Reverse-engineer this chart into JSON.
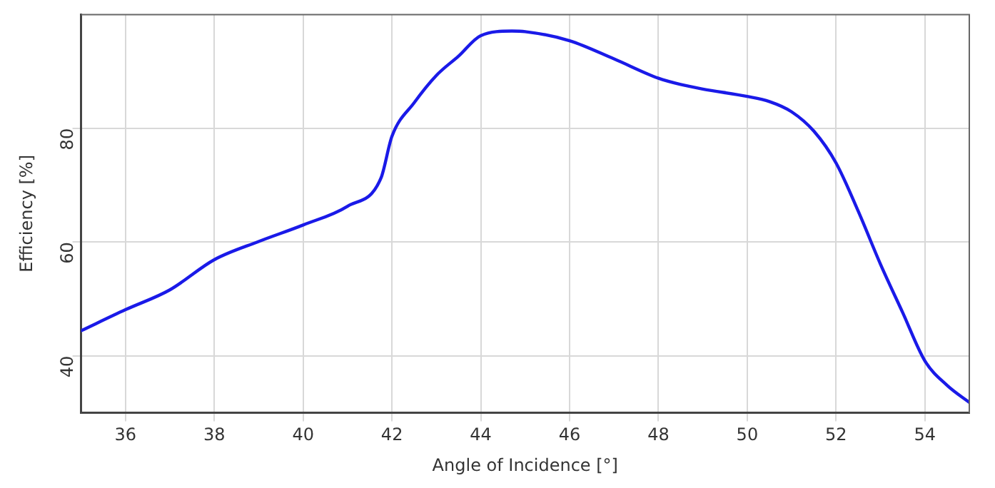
{
  "chart_data": {
    "type": "line",
    "xlabel": "Angle of Incidence [°]",
    "ylabel": "Efficiency [%]",
    "x": [
      35,
      36,
      37,
      38,
      39,
      40,
      41,
      41.75,
      42,
      42.5,
      43,
      43.5,
      44,
      44.7,
      45,
      46,
      47,
      48,
      48.5,
      49,
      50,
      50.5,
      51,
      51.5,
      52,
      52.5,
      53,
      53.5,
      54,
      54.5,
      55
    ],
    "series": [
      {
        "color": "#1a1ae8",
        "values": [
          44.4,
          48.1,
          51.6,
          56.9,
          60.1,
          63.0,
          66.3,
          71.2,
          78.6,
          84.5,
          89.3,
          92.7,
          96.3,
          97.1,
          97.0,
          95.4,
          92.2,
          88.8,
          87.7,
          86.9,
          85.6,
          84.7,
          82.9,
          79.5,
          73.9,
          65.4,
          56.1,
          47.6,
          39.1,
          34.8,
          31.8
        ]
      }
    ],
    "xlim": [
      35,
      55
    ],
    "xticks": [
      36,
      38,
      40,
      42,
      44,
      46,
      48,
      50,
      52,
      54
    ],
    "ylim": [
      30,
      100
    ],
    "yticks": [
      40,
      60,
      80
    ],
    "grid": true,
    "legend": false,
    "marker": "none",
    "line_style": "solid"
  }
}
